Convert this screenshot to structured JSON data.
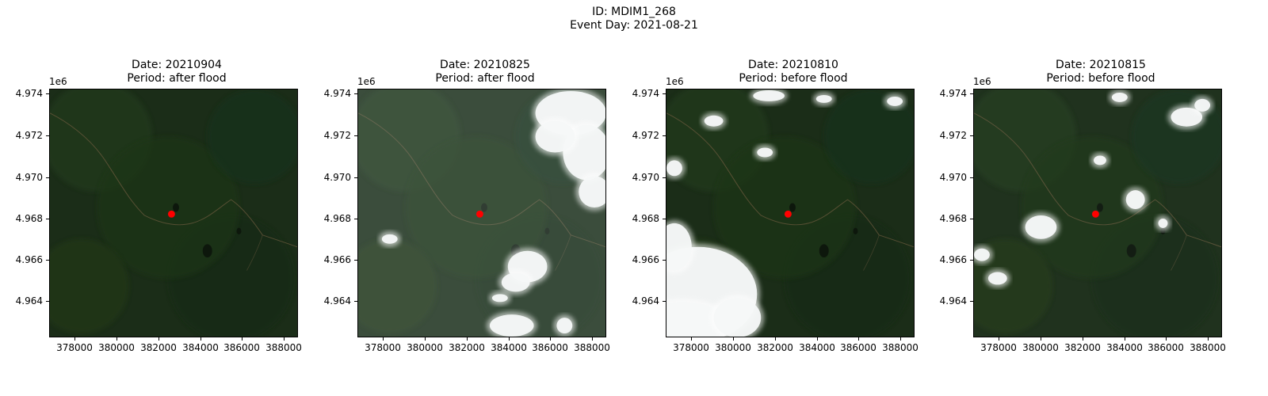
{
  "figure": {
    "title_line1": "ID: MDIM1_268",
    "title_line2": "Event Day: 2021-08-21"
  },
  "axis_offset_label": "1e6",
  "x_ticks": [
    "378000",
    "380000",
    "382000",
    "384000",
    "386000",
    "388000"
  ],
  "y_ticks": [
    "4.974",
    "4.972",
    "4.970",
    "4.968",
    "4.966",
    "4.964"
  ],
  "marker": {
    "x": 382600,
    "y": 4968250,
    "color": "#ff0000"
  },
  "x_range": [
    376700,
    388700
  ],
  "y_range": [
    4962300,
    4974300
  ],
  "panels": [
    {
      "title_line1": "Date: 20210904",
      "title_line2": "Period: after flood",
      "cloud_cover": "none"
    },
    {
      "title_line1": "Date: 20210825",
      "title_line2": "Period: after flood",
      "cloud_cover": "heavy haze with clouds on east side"
    },
    {
      "title_line1": "Date: 20210810",
      "title_line2": "Period: before flood",
      "cloud_cover": "large clouds in southwest"
    },
    {
      "title_line1": "Date: 20210815",
      "title_line2": "Period: before flood",
      "cloud_cover": "scattered small clouds"
    }
  ]
}
